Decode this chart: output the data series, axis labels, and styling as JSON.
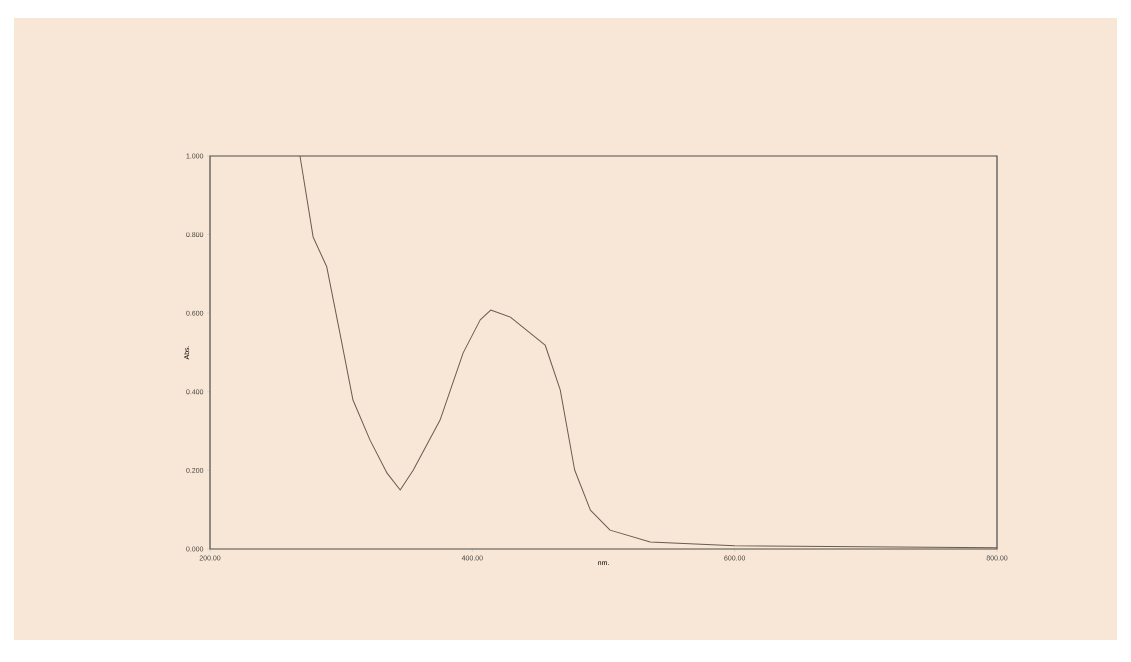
{
  "chart_data": {
    "type": "line",
    "xlabel": "nm.",
    "ylabel": "Abs.",
    "x": [
      268.6,
      278.6,
      289,
      299,
      309,
      322,
      335,
      345,
      355,
      375.4,
      393,
      406,
      414,
      429,
      455.5,
      467,
      478,
      490,
      505,
      535.6,
      600,
      800
    ],
    "values": [
      1.0,
      0.794,
      0.718,
      0.55,
      0.379,
      0.277,
      0.193,
      0.15,
      0.201,
      0.328,
      0.499,
      0.583,
      0.608,
      0.59,
      0.519,
      0.405,
      0.201,
      0.099,
      0.048,
      0.018,
      0.008,
      0.003
    ],
    "color": "#6b5a4e",
    "xlim": [
      200,
      800
    ],
    "ylim": [
      0,
      1
    ],
    "xticks": [
      {
        "value": 200,
        "label": "200.00"
      },
      {
        "value": 400,
        "label": "400.00"
      },
      {
        "value": 600,
        "label": "600.00"
      },
      {
        "value": 800,
        "label": "800.00"
      }
    ],
    "yticks": [
      {
        "value": 0,
        "label": "0.000"
      },
      {
        "value": 0.2,
        "label": "0.200"
      },
      {
        "value": 0.4,
        "label": "0.400"
      },
      {
        "value": 0.6,
        "label": "0.600"
      },
      {
        "value": 0.8,
        "label": "0.800"
      },
      {
        "value": 1,
        "label": "1.000"
      }
    ],
    "grid": false
  }
}
